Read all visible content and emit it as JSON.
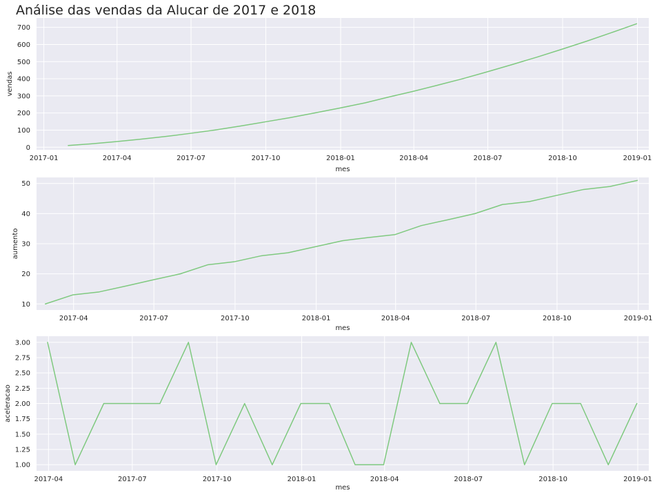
{
  "chart_data": [
    {
      "type": "line",
      "title": "Análise das vendas da Alucar de 2017 e 2018",
      "xlabel": "mes",
      "ylabel": "vendas",
      "x_type": "date",
      "xlim": [
        "2016-12-23",
        "2019-01-15"
      ],
      "ylim": [
        -15,
        755
      ],
      "x_ticks": [
        "2017-01-01",
        "2017-04-01",
        "2017-07-01",
        "2017-10-01",
        "2018-01-01",
        "2018-04-01",
        "2018-07-01",
        "2018-10-01",
        "2019-01-01"
      ],
      "x_tick_labels": [
        "2017-01",
        "2017-04",
        "2017-07",
        "2017-10",
        "2018-01",
        "2018-04",
        "2018-07",
        "2018-10",
        "2019-01"
      ],
      "y_ticks": [
        0,
        100,
        200,
        300,
        400,
        500,
        600,
        700
      ],
      "y_tick_labels": [
        "0",
        "100",
        "200",
        "300",
        "400",
        "500",
        "600",
        "700"
      ],
      "grid": true,
      "series": [
        {
          "color": "#7fc97f",
          "x": [
            "2017-01-31",
            "2017-02-28",
            "2017-03-31",
            "2017-04-30",
            "2017-05-31",
            "2017-06-30",
            "2017-07-31",
            "2017-08-31",
            "2017-09-30",
            "2017-10-31",
            "2017-11-30",
            "2017-12-31",
            "2018-01-31",
            "2018-02-28",
            "2018-03-31",
            "2018-04-30",
            "2018-05-31",
            "2018-06-30",
            "2018-07-31",
            "2018-08-31",
            "2018-09-30",
            "2018-10-31",
            "2018-11-30",
            "2018-12-31"
          ],
          "values": [
            10,
            20,
            33,
            47,
            63,
            81,
            101,
            124,
            148,
            173,
            200,
            229,
            259,
            292,
            326,
            362,
            400,
            440,
            483,
            527,
            572,
            620,
            669,
            721
          ]
        }
      ]
    },
    {
      "type": "line",
      "xlabel": "mes",
      "ylabel": "aumento",
      "x_type": "date",
      "xlim": [
        "2017-02-18",
        "2019-01-13"
      ],
      "ylim": [
        8,
        52
      ],
      "x_ticks": [
        "2017-04-01",
        "2017-07-01",
        "2017-10-01",
        "2018-01-01",
        "2018-04-01",
        "2018-07-01",
        "2018-10-01",
        "2019-01-01"
      ],
      "x_tick_labels": [
        "2017-04",
        "2017-07",
        "2017-10",
        "2018-01",
        "2018-04",
        "2018-07",
        "2018-10",
        "2019-01"
      ],
      "y_ticks": [
        10,
        20,
        30,
        40,
        50
      ],
      "y_tick_labels": [
        "10",
        "20",
        "30",
        "40",
        "50"
      ],
      "grid": true,
      "series": [
        {
          "color": "#7fc97f",
          "x": [
            "2017-02-28",
            "2017-03-31",
            "2017-04-30",
            "2017-05-31",
            "2017-06-30",
            "2017-07-31",
            "2017-08-31",
            "2017-09-30",
            "2017-10-31",
            "2017-11-30",
            "2017-12-31",
            "2018-01-31",
            "2018-02-28",
            "2018-03-31",
            "2018-04-30",
            "2018-05-31",
            "2018-06-30",
            "2018-07-31",
            "2018-08-31",
            "2018-09-30",
            "2018-10-31",
            "2018-11-30",
            "2018-12-31"
          ],
          "values": [
            10,
            13,
            14,
            16,
            18,
            20,
            23,
            24,
            26,
            27,
            29,
            31,
            32,
            33,
            36,
            38,
            40,
            43,
            44,
            46,
            48,
            49,
            51
          ]
        }
      ]
    },
    {
      "type": "line",
      "xlabel": "mes",
      "ylabel": "aceleracao",
      "x_type": "date",
      "xlim": [
        "2017-03-19",
        "2019-01-13"
      ],
      "ylim": [
        0.9,
        3.1
      ],
      "x_ticks": [
        "2017-04-01",
        "2017-07-01",
        "2017-10-01",
        "2018-01-01",
        "2018-04-01",
        "2018-07-01",
        "2018-10-01",
        "2019-01-01"
      ],
      "x_tick_labels": [
        "2017-04",
        "2017-07",
        "2017-10",
        "2018-01",
        "2018-04",
        "2018-07",
        "2018-10",
        "2019-01"
      ],
      "y_ticks": [
        1.0,
        1.25,
        1.5,
        1.75,
        2.0,
        2.25,
        2.5,
        2.75,
        3.0
      ],
      "y_tick_labels": [
        "1.00",
        "1.25",
        "1.50",
        "1.75",
        "2.00",
        "2.25",
        "2.50",
        "2.75",
        "3.00"
      ],
      "grid": true,
      "series": [
        {
          "color": "#7fc97f",
          "x": [
            "2017-03-31",
            "2017-04-30",
            "2017-05-31",
            "2017-06-30",
            "2017-07-31",
            "2017-08-31",
            "2017-09-30",
            "2017-10-31",
            "2017-11-30",
            "2017-12-31",
            "2018-01-31",
            "2018-02-28",
            "2018-03-31",
            "2018-04-30",
            "2018-05-31",
            "2018-06-30",
            "2018-07-31",
            "2018-08-31",
            "2018-09-30",
            "2018-10-31",
            "2018-11-30",
            "2018-12-31"
          ],
          "values": [
            3,
            1,
            2,
            2,
            2,
            3,
            1,
            2,
            1,
            2,
            2,
            1,
            1,
            3,
            2,
            2,
            3,
            1,
            2,
            2,
            1,
            2
          ]
        }
      ]
    }
  ]
}
